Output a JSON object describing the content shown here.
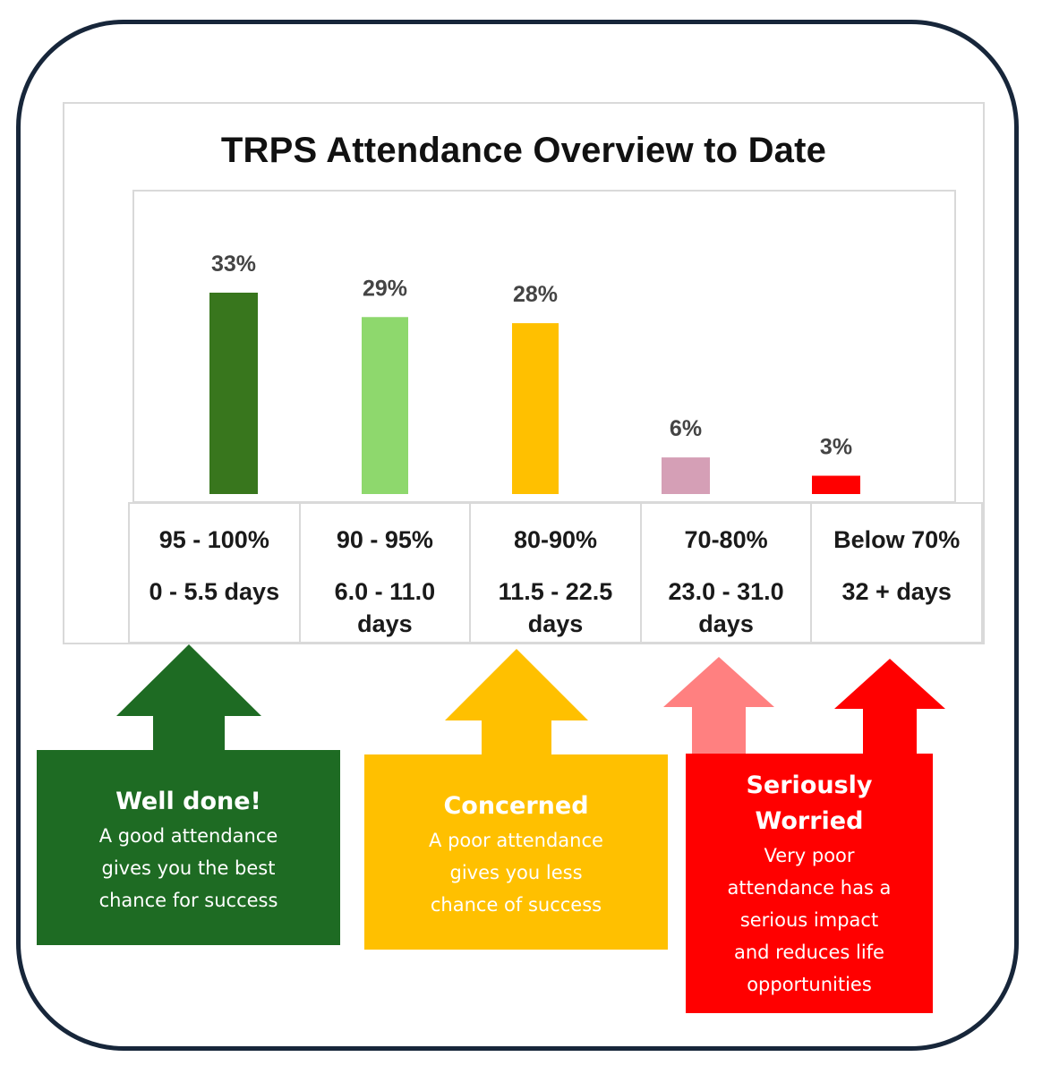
{
  "chart_data": {
    "type": "bar",
    "title": "TRPS Attendance Overview to Date",
    "categories": [
      "95 - 100%",
      "90 - 95%",
      "80-90%",
      "70-80%",
      "Below 70%"
    ],
    "day_ranges": [
      "0 - 5.5 days",
      "6.0 - 11.0 days",
      "11.5 - 22.5 days",
      "23.0 - 31.0 days",
      "32 + days"
    ],
    "values": [
      33,
      29,
      28,
      6,
      3
    ],
    "value_labels": [
      "33%",
      "29%",
      "28%",
      "6%",
      "3%"
    ],
    "colors": [
      "#38761d",
      "#8ed86d",
      "#ffc000",
      "#d59fb6",
      "#ff0000"
    ],
    "ylim": [
      0,
      40
    ],
    "grid": false,
    "legend": "none"
  },
  "messages": [
    {
      "heading": "Well done!",
      "body": [
        "A good attendance",
        "gives you the best",
        "chance for success"
      ],
      "color": "#1e6b23"
    },
    {
      "heading": "Concerned",
      "body": [
        "A poor attendance",
        "gives you less",
        "chance of success"
      ],
      "color": "#ffc000"
    },
    {
      "heading": "Seriously Worried",
      "body": [
        "Very poor",
        "attendance has a",
        "serious impact",
        "and reduces life",
        "opportunities"
      ],
      "color": "#ff0000"
    }
  ],
  "arrow_colors": [
    "#1e6b23",
    "#ffc000",
    "#ff8080",
    "#ff0000"
  ]
}
